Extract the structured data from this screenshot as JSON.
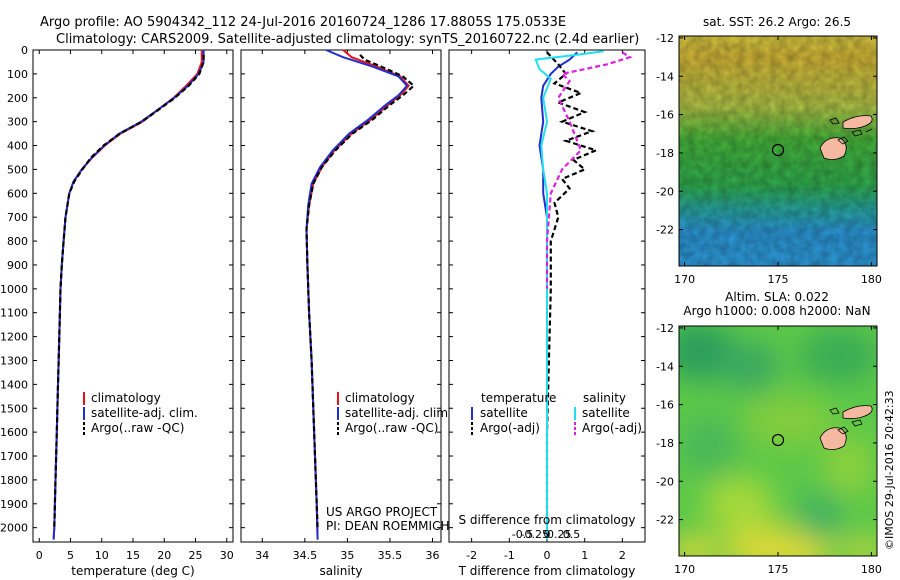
{
  "header": {
    "line1": "Argo profile: AO 5904342_112 24-Jul-2016 20160724_1286 17.8805S 175.0533E",
    "line2": "Climatology: CARS2009. Satellite-adjusted climatology: synTS_20160722.nc (2.4d earlier)"
  },
  "credits": {
    "project": "US ARGO PROJECT",
    "pi": "PI: DEAN ROEMMICH",
    "imos": "©IMOS 29-Jul-2016 20:42:33"
  },
  "colors": {
    "climatology": "#e8141c",
    "satellite": "#2030d0",
    "argo": "#000000",
    "sal_satellite": "#20e0f0",
    "sal_argo": "#e020e0",
    "land": "#f4b9a0"
  },
  "chart_data": [
    {
      "type": "line",
      "id": "temperature",
      "xlabel": "temperature (deg C)",
      "xlim": [
        -1,
        31
      ],
      "ylim": [
        0,
        2060
      ],
      "xticks": [
        0,
        5,
        10,
        15,
        20,
        25,
        30
      ],
      "yticks": [
        0,
        100,
        200,
        300,
        400,
        500,
        600,
        700,
        800,
        900,
        1000,
        1100,
        1200,
        1300,
        1400,
        1500,
        1600,
        1700,
        1800,
        1900,
        2000
      ],
      "legend": [
        "climatology",
        "satellite-adj. clim.",
        "Argo(..raw -QC)"
      ],
      "series": [
        {
          "name": "climatology",
          "color": "#e8141c",
          "points": [
            [
              26.0,
              0
            ],
            [
              26.0,
              50
            ],
            [
              25.3,
              100
            ],
            [
              23.5,
              150
            ],
            [
              21.5,
              200
            ],
            [
              19.0,
              250
            ],
            [
              16.5,
              300
            ],
            [
              13.0,
              350
            ],
            [
              10.5,
              400
            ],
            [
              8.5,
              450
            ],
            [
              6.8,
              500
            ],
            [
              5.5,
              550
            ],
            [
              4.8,
              600
            ],
            [
              4.2,
              700
            ],
            [
              3.9,
              800
            ],
            [
              3.6,
              900
            ],
            [
              3.4,
              1000
            ],
            [
              3.2,
              1200
            ],
            [
              3.0,
              1400
            ],
            [
              2.8,
              1600
            ],
            [
              2.6,
              1800
            ],
            [
              2.4,
              2000
            ],
            [
              2.3,
              2050
            ]
          ]
        },
        {
          "name": "satellite-adj. clim.",
          "color": "#2030d0",
          "points": [
            [
              26.3,
              0
            ],
            [
              26.3,
              50
            ],
            [
              25.5,
              100
            ],
            [
              23.8,
              150
            ],
            [
              21.6,
              200
            ],
            [
              19.0,
              250
            ],
            [
              16.3,
              300
            ],
            [
              12.8,
              350
            ],
            [
              10.4,
              400
            ],
            [
              8.4,
              450
            ],
            [
              6.8,
              500
            ],
            [
              5.5,
              550
            ],
            [
              4.8,
              600
            ],
            [
              4.2,
              700
            ],
            [
              3.9,
              800
            ],
            [
              3.6,
              900
            ],
            [
              3.4,
              1000
            ],
            [
              3.2,
              1200
            ],
            [
              3.0,
              1400
            ],
            [
              2.8,
              1600
            ],
            [
              2.6,
              1800
            ],
            [
              2.4,
              2000
            ],
            [
              2.3,
              2050
            ]
          ]
        },
        {
          "name": "Argo(..raw -QC)",
          "color": "#000000",
          "dash": true,
          "points": [
            [
              26.3,
              20
            ],
            [
              26.3,
              50
            ],
            [
              25.6,
              100
            ],
            [
              23.9,
              150
            ],
            [
              21.7,
              200
            ],
            [
              19.1,
              250
            ],
            [
              16.4,
              300
            ],
            [
              12.9,
              350
            ],
            [
              10.3,
              400
            ],
            [
              8.3,
              450
            ],
            [
              6.9,
              500
            ],
            [
              5.6,
              550
            ],
            [
              4.8,
              600
            ],
            [
              4.2,
              700
            ],
            [
              3.9,
              800
            ],
            [
              3.6,
              900
            ],
            [
              3.4,
              1000
            ],
            [
              3.2,
              1200
            ],
            [
              3.0,
              1400
            ],
            [
              2.8,
              1600
            ],
            [
              2.6,
              1800
            ],
            [
              2.4,
              2000
            ]
          ]
        }
      ]
    },
    {
      "type": "line",
      "id": "salinity",
      "xlabel": "salinity",
      "xlim": [
        33.75,
        36.1
      ],
      "ylim": [
        0,
        2060
      ],
      "xticks": [
        34,
        34.5,
        35,
        35.5,
        36
      ],
      "legend": [
        "climatology",
        "satellite-adj. clim.",
        "Argo(..raw -QC)"
      ],
      "series": [
        {
          "name": "climatology",
          "color": "#e8141c",
          "points": [
            [
              34.95,
              0
            ],
            [
              35.05,
              30
            ],
            [
              35.35,
              70
            ],
            [
              35.62,
              110
            ],
            [
              35.72,
              150
            ],
            [
              35.62,
              190
            ],
            [
              35.48,
              230
            ],
            [
              35.28,
              290
            ],
            [
              35.05,
              350
            ],
            [
              34.85,
              420
            ],
            [
              34.7,
              490
            ],
            [
              34.6,
              560
            ],
            [
              34.55,
              650
            ],
            [
              34.52,
              750
            ],
            [
              34.53,
              900
            ],
            [
              34.55,
              1100
            ],
            [
              34.58,
              1300
            ],
            [
              34.6,
              1500
            ],
            [
              34.62,
              1700
            ],
            [
              34.64,
              1900
            ],
            [
              34.65,
              2050
            ]
          ]
        },
        {
          "name": "satellite-adj. clim.",
          "color": "#2030d0",
          "points": [
            [
              34.75,
              0
            ],
            [
              34.95,
              30
            ],
            [
              35.3,
              70
            ],
            [
              35.6,
              110
            ],
            [
              35.7,
              150
            ],
            [
              35.6,
              190
            ],
            [
              35.45,
              230
            ],
            [
              35.25,
              290
            ],
            [
              35.02,
              350
            ],
            [
              34.83,
              420
            ],
            [
              34.68,
              490
            ],
            [
              34.58,
              560
            ],
            [
              34.54,
              650
            ],
            [
              34.52,
              750
            ],
            [
              34.53,
              900
            ],
            [
              34.55,
              1100
            ],
            [
              34.58,
              1300
            ],
            [
              34.6,
              1500
            ],
            [
              34.62,
              1700
            ],
            [
              34.64,
              1900
            ],
            [
              34.65,
              2050
            ]
          ]
        },
        {
          "name": "Argo(..raw -QC)",
          "color": "#000000",
          "dash": true,
          "points": [
            [
              35.15,
              20
            ],
            [
              35.2,
              40
            ],
            [
              35.4,
              70
            ],
            [
              35.65,
              110
            ],
            [
              35.78,
              150
            ],
            [
              35.65,
              190
            ],
            [
              35.5,
              230
            ],
            [
              35.3,
              290
            ],
            [
              35.06,
              350
            ],
            [
              34.86,
              420
            ],
            [
              34.7,
              490
            ],
            [
              34.6,
              560
            ],
            [
              34.55,
              650
            ],
            [
              34.52,
              750
            ],
            [
              34.53,
              900
            ],
            [
              34.55,
              1100
            ],
            [
              34.58,
              1300
            ],
            [
              34.6,
              1500
            ],
            [
              34.62,
              1700
            ],
            [
              34.64,
              1900
            ],
            [
              34.65,
              2000
            ]
          ]
        }
      ]
    },
    {
      "type": "line",
      "id": "difference",
      "xlabel": "T difference from climatology",
      "xlabel_top": "S difference from climatology",
      "xlim": [
        -2.6,
        2.6
      ],
      "xticks": [
        -2,
        -1,
        0,
        1,
        2
      ],
      "s_ticks": [
        -0.5,
        -0.25,
        0,
        0.25,
        0.5
      ],
      "s_tick_labels": [
        "-0.5",
        "-0.25",
        "0",
        "0.25",
        "0.5"
      ],
      "ylim": [
        0,
        2060
      ],
      "legend_temperature_title": "temperature",
      "legend_salinity_title": "salinity",
      "legend": [
        "satellite",
        "Argo(-adj)",
        "satellite",
        "Argo(-adj)"
      ],
      "series": [
        {
          "name": "temperature satellite",
          "color": "#2030d0",
          "points": [
            [
              0.8,
              10
            ],
            [
              0.6,
              40
            ],
            [
              0.3,
              70
            ],
            [
              0.1,
              100
            ],
            [
              -0.1,
              150
            ],
            [
              -0.15,
              200
            ],
            [
              -0.1,
              300
            ],
            [
              -0.2,
              400
            ],
            [
              -0.1,
              500
            ],
            [
              -0.1,
              600
            ],
            [
              0.0,
              700
            ],
            [
              0.0,
              800
            ],
            [
              0.0,
              1000
            ],
            [
              0.0,
              1400
            ],
            [
              0.0,
              1800
            ],
            [
              0.0,
              2050
            ]
          ]
        },
        {
          "name": "temperature Argo(-adj)",
          "color": "#000000",
          "dash": true,
          "points": [
            [
              0.0,
              10
            ],
            [
              0.3,
              60
            ],
            [
              0.5,
              100
            ],
            [
              0.2,
              140
            ],
            [
              0.9,
              180
            ],
            [
              0.3,
              220
            ],
            [
              1.0,
              260
            ],
            [
              0.4,
              300
            ],
            [
              1.2,
              340
            ],
            [
              0.5,
              380
            ],
            [
              1.3,
              420
            ],
            [
              0.7,
              460
            ],
            [
              1.0,
              500
            ],
            [
              0.4,
              540
            ],
            [
              0.6,
              580
            ],
            [
              0.2,
              640
            ],
            [
              0.3,
              700
            ],
            [
              0.1,
              800
            ],
            [
              0.1,
              1000
            ],
            [
              0.05,
              1300
            ],
            [
              0.0,
              1600
            ],
            [
              0.0,
              2000
            ]
          ]
        },
        {
          "name": "salinity satellite",
          "color": "#20e0f0",
          "points": [
            [
              1.5,
              5
            ],
            [
              0.8,
              20
            ],
            [
              -0.3,
              40
            ],
            [
              -0.2,
              80
            ],
            [
              0.1,
              120
            ],
            [
              -0.1,
              200
            ],
            [
              0.0,
              300
            ],
            [
              -0.15,
              400
            ],
            [
              -0.1,
              500
            ],
            [
              0.0,
              600
            ],
            [
              0.0,
              800
            ],
            [
              0.0,
              1200
            ],
            [
              0.0,
              1600
            ],
            [
              0.0,
              2050
            ]
          ]
        },
        {
          "name": "salinity Argo(-adj)",
          "color": "#e020e0",
          "dash": true,
          "points": [
            [
              2.0,
              10
            ],
            [
              2.2,
              30
            ],
            [
              1.6,
              60
            ],
            [
              1.0,
              80
            ],
            [
              0.4,
              100
            ],
            [
              0.6,
              130
            ],
            [
              0.3,
              200
            ],
            [
              0.6,
              300
            ],
            [
              0.9,
              420
            ],
            [
              0.4,
              500
            ],
            [
              0.1,
              600
            ],
            [
              0.0,
              800
            ],
            [
              0.0,
              1000
            ]
          ]
        }
      ]
    },
    {
      "type": "heatmap",
      "id": "sst-map",
      "title": "sat. SST: 26.2  Argo: 26.5",
      "xticks": [
        170,
        175,
        180
      ],
      "yticks": [
        -12,
        -14,
        -16,
        -18,
        -20,
        -22
      ],
      "xlim": [
        169.7,
        180.3
      ],
      "ylim": [
        -23.9,
        -11.9
      ],
      "argo_position": [
        175.05,
        -17.88
      ]
    },
    {
      "type": "heatmap",
      "id": "sla-map",
      "title_line1": "Altim. SLA: 0.022",
      "title_line2": "Argo h1000: 0.008  h2000: NaN",
      "xticks": [
        170,
        175,
        180
      ],
      "yticks": [
        -12,
        -14,
        -16,
        -18,
        -20,
        -22
      ],
      "xlim": [
        169.7,
        180.3
      ],
      "ylim": [
        -23.9,
        -11.9
      ],
      "argo_position": [
        175.05,
        -17.88
      ]
    }
  ]
}
